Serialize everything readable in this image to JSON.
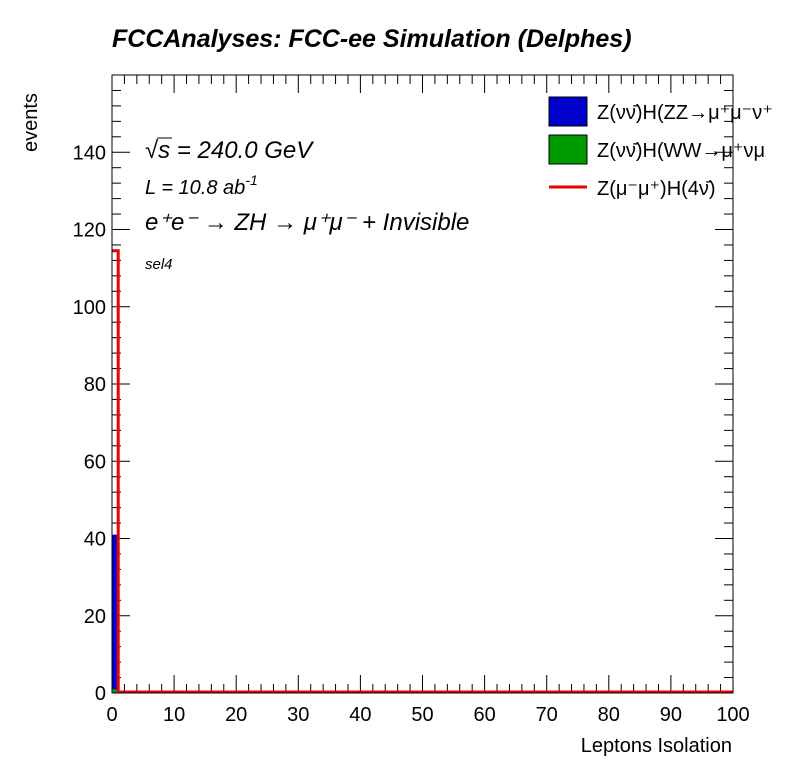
{
  "chart_data": {
    "type": "bar",
    "title": "FCCAnalyses: FCC-ee Simulation (Delphes)",
    "xlabel": "Leptons Isolation",
    "ylabel": "events",
    "xlim": [
      0,
      100
    ],
    "ylim": [
      0,
      160
    ],
    "xticks": [
      "0",
      "10",
      "20",
      "30",
      "40",
      "50",
      "60",
      "70",
      "80",
      "90",
      "100"
    ],
    "yticks": [
      "0",
      "20",
      "40",
      "60",
      "80",
      "100",
      "120",
      "140"
    ],
    "grid": false,
    "legend_position": "top-right",
    "bin_width": 1,
    "series": [
      {
        "name": "Z(νν̄)H(ZZ→μ⁺μ⁻ν⁺",
        "style": "filled",
        "color": "#0000cc",
        "bins": [
          {
            "x": 0,
            "value": 41
          }
        ]
      },
      {
        "name": "Z(νν̄)H(WW→μ⁺νμ",
        "style": "filled",
        "color": "#009900",
        "bins": [
          {
            "x": 0,
            "value": 1
          }
        ]
      },
      {
        "name": "Z(μ⁻μ⁺)H(4ν̄)",
        "style": "line",
        "color": "#ee0000",
        "bins": [
          {
            "x": 0,
            "value": 114.5
          }
        ]
      }
    ],
    "annotations": {
      "energy_sqrt": "√",
      "energy_s": "s",
      "energy_value": " = 240.0 GeV",
      "lumi_prefix": "L = 10.8 ab",
      "lumi_exp": "-1",
      "process": "e⁺e⁻ → ZH → μ⁺μ⁻ + Invisible",
      "selection": "sel4"
    }
  }
}
